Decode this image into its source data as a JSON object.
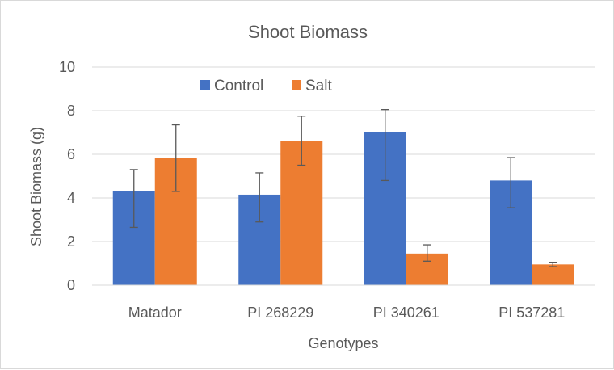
{
  "chart_data": {
    "type": "bar",
    "title": "Shoot Biomass",
    "xlabel": "Genotypes",
    "ylabel": "Shoot Biomass (g)",
    "ylim": [
      0,
      10
    ],
    "yticks": [
      0,
      2,
      4,
      6,
      8,
      10
    ],
    "grid": true,
    "legend_position": "top-left",
    "categories": [
      "Matador",
      "PI 268229",
      "PI 340261",
      "PI 537281"
    ],
    "series": [
      {
        "name": "Control",
        "color": "#4472c4",
        "values": [
          4.3,
          4.15,
          7.0,
          4.8
        ],
        "error_low": [
          1.65,
          1.25,
          2.2,
          1.25
        ],
        "error_high": [
          1.0,
          1.0,
          1.05,
          1.05
        ]
      },
      {
        "name": "Salt",
        "color": "#ed7d31",
        "values": [
          5.85,
          6.6,
          1.45,
          0.95
        ],
        "error_low": [
          1.55,
          1.1,
          0.35,
          0.1
        ],
        "error_high": [
          1.5,
          1.15,
          0.4,
          0.1
        ]
      }
    ]
  }
}
